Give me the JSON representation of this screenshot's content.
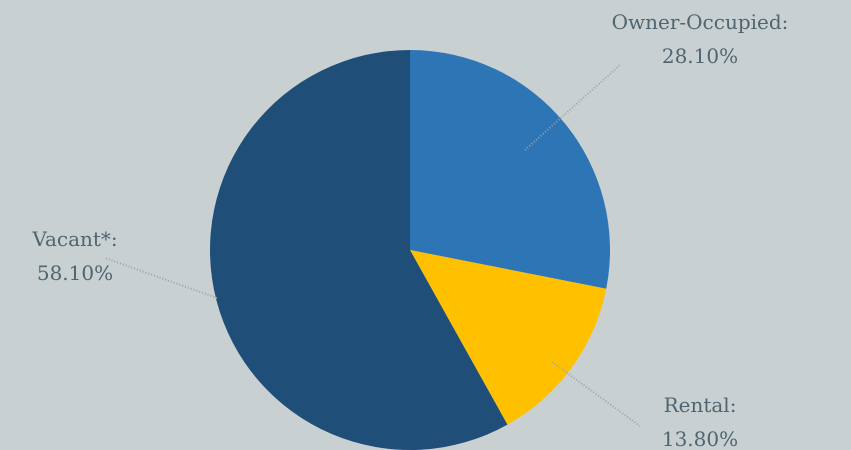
{
  "chart_data": {
    "type": "pie",
    "title": "",
    "slices": [
      {
        "label": "Owner-Occupied",
        "value": 28.1,
        "display": "28.10%",
        "color": "#2e75b6"
      },
      {
        "label": "Rental",
        "value": 13.8,
        "display": "13.80%",
        "color": "#ffc000"
      },
      {
        "label": "Vacant*",
        "value": 58.1,
        "display": "58.10%",
        "color": "#1f4e79"
      }
    ],
    "start_angle": "12 o'clock",
    "direction": "clockwise",
    "label_style": "outside with dotted leader lines",
    "background_color": "#c9d0d2",
    "label_color": "#4f6570"
  }
}
